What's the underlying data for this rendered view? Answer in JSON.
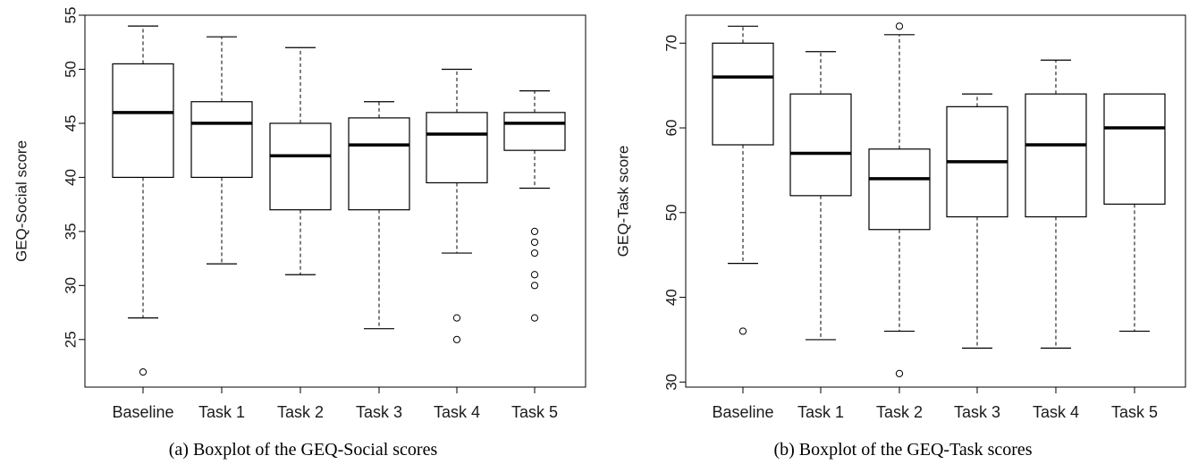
{
  "chart_data": [
    {
      "type": "boxplot",
      "caption": "(a) Boxplot of the GEQ-Social scores",
      "ylabel": "GEQ-Social score",
      "xlabel": "",
      "ylim": [
        20.6,
        55
      ],
      "yticks": [
        25,
        30,
        35,
        40,
        45,
        50,
        55
      ],
      "grid": false,
      "categories": [
        "Baseline",
        "Task 1",
        "Task 2",
        "Task 3",
        "Task 4",
        "Task 5"
      ],
      "boxes": [
        {
          "label": "Baseline",
          "whisker_low": 27,
          "q1": 40,
          "median": 46,
          "q3": 50.5,
          "whisker_high": 54,
          "outliers": [
            22
          ]
        },
        {
          "label": "Task 1",
          "whisker_low": 32,
          "q1": 40,
          "median": 45,
          "q3": 47,
          "whisker_high": 53,
          "outliers": []
        },
        {
          "label": "Task 2",
          "whisker_low": 31,
          "q1": 37,
          "median": 42,
          "q3": 45,
          "whisker_high": 52,
          "outliers": []
        },
        {
          "label": "Task 3",
          "whisker_low": 26,
          "q1": 37,
          "median": 43,
          "q3": 45.5,
          "whisker_high": 47,
          "outliers": []
        },
        {
          "label": "Task 4",
          "whisker_low": 33,
          "q1": 39.5,
          "median": 44,
          "q3": 46,
          "whisker_high": 50,
          "outliers": [
            27,
            25
          ]
        },
        {
          "label": "Task 5",
          "whisker_low": 39,
          "q1": 42.5,
          "median": 45,
          "q3": 46,
          "whisker_high": 48,
          "outliers": [
            35,
            34,
            33,
            31,
            30,
            27
          ]
        }
      ]
    },
    {
      "type": "boxplot",
      "caption": "(b) Boxplot of the GEQ-Task scores",
      "ylabel": "GEQ-Task score",
      "xlabel": "",
      "ylim": [
        29.4,
        73.3
      ],
      "yticks": [
        30,
        40,
        50,
        60,
        70
      ],
      "grid": false,
      "categories": [
        "Baseline",
        "Task 1",
        "Task 2",
        "Task 3",
        "Task 4",
        "Task 5"
      ],
      "boxes": [
        {
          "label": "Baseline",
          "whisker_low": 44,
          "q1": 58,
          "median": 66,
          "q3": 70,
          "whisker_high": 72,
          "outliers": [
            36
          ]
        },
        {
          "label": "Task 1",
          "whisker_low": 35,
          "q1": 52,
          "median": 57,
          "q3": 64,
          "whisker_high": 69,
          "outliers": []
        },
        {
          "label": "Task 2",
          "whisker_low": 36,
          "q1": 48,
          "median": 54,
          "q3": 57.5,
          "whisker_high": 71,
          "outliers": [
            72,
            31
          ]
        },
        {
          "label": "Task 3",
          "whisker_low": 34,
          "q1": 49.5,
          "median": 56,
          "q3": 62.5,
          "whisker_high": 64,
          "outliers": []
        },
        {
          "label": "Task 4",
          "whisker_low": 34,
          "q1": 49.5,
          "median": 58,
          "q3": 64,
          "whisker_high": 68,
          "outliers": []
        },
        {
          "label": "Task 5",
          "whisker_low": 36,
          "q1": 51,
          "median": 60,
          "q3": 64,
          "whisker_high": 64,
          "outliers": []
        }
      ]
    }
  ]
}
